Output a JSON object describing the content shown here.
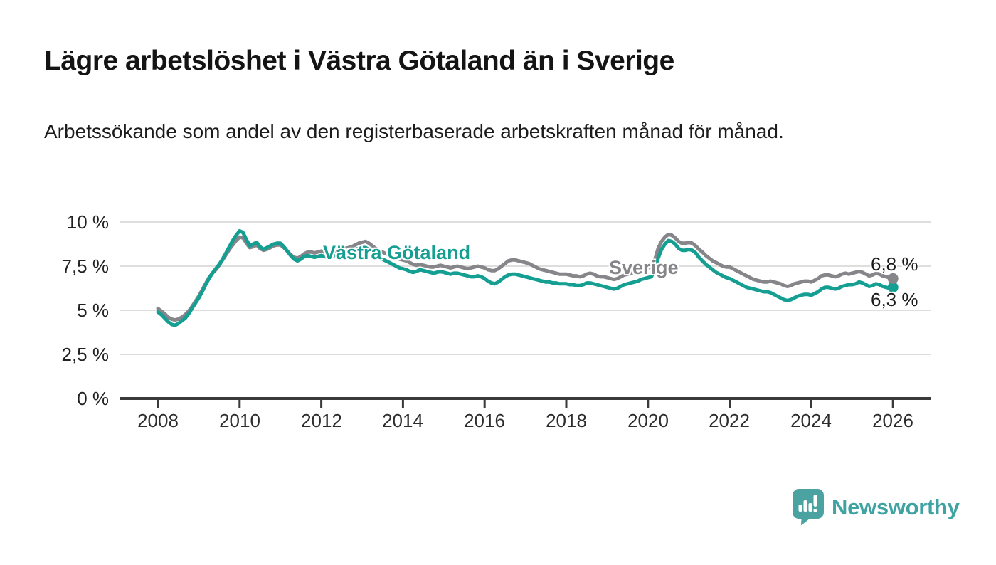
{
  "header": {
    "title": "Lägre arbetslöshet i Västra Götaland än i Sverige",
    "subtitle": "Arbetssökande som andel av den registerbaserade arbetskraften månad för månad."
  },
  "branding": {
    "logo_text": "Newsworthy",
    "logo_icon": "newsworthy-speech-bubble-bar-chart-icon",
    "logo_color": "#4AA3A1"
  },
  "chart_data": {
    "type": "line",
    "title": "Lägre arbetslöshet i Västra Götaland än i Sverige",
    "xlabel": "",
    "ylabel": "",
    "x_unit": "month",
    "x_start_year": 2008,
    "x_end_year": 2026,
    "ylim": [
      0,
      10.8
    ],
    "xlim": [
      2007.05,
      2027.05
    ],
    "grid": "horizontal",
    "legend_position": "inline-labels",
    "y_ticks": [
      {
        "value": 10,
        "label": "10 %"
      },
      {
        "value": 7.5,
        "label": "7,5 %"
      },
      {
        "value": 5,
        "label": "5 %"
      },
      {
        "value": 2.5,
        "label": "2,5 %"
      },
      {
        "value": 0,
        "label": "0 %"
      }
    ],
    "x_ticks": [
      {
        "value": 2008,
        "label": "2008"
      },
      {
        "value": 2010,
        "label": "2010"
      },
      {
        "value": 2012,
        "label": "2012"
      },
      {
        "value": 2014,
        "label": "2014"
      },
      {
        "value": 2016,
        "label": "2016"
      },
      {
        "value": 2018,
        "label": "2018"
      },
      {
        "value": 2020,
        "label": "2020"
      },
      {
        "value": 2022,
        "label": "2022"
      },
      {
        "value": 2024,
        "label": "2024"
      },
      {
        "value": 2026,
        "label": "2026"
      }
    ],
    "series": [
      {
        "name": "Sverige",
        "color": "#85858A",
        "end_label": "6,8 %",
        "end_value": 6.8,
        "values": [
          5.1,
          4.95,
          4.8,
          4.6,
          4.5,
          4.45,
          4.5,
          4.6,
          4.75,
          4.95,
          5.2,
          5.5,
          5.8,
          6.15,
          6.5,
          6.85,
          7.1,
          7.3,
          7.55,
          7.85,
          8.15,
          8.45,
          8.7,
          8.95,
          9.15,
          9.1,
          8.8,
          8.55,
          8.6,
          8.7,
          8.5,
          8.4,
          8.45,
          8.55,
          8.65,
          8.7,
          8.7,
          8.55,
          8.35,
          8.15,
          8.0,
          7.95,
          8.05,
          8.2,
          8.3,
          8.3,
          8.25,
          8.3,
          8.35,
          8.3,
          8.25,
          8.3,
          8.35,
          8.4,
          8.45,
          8.5,
          8.55,
          8.6,
          8.7,
          8.8,
          8.85,
          8.9,
          8.8,
          8.65,
          8.5,
          8.4,
          8.3,
          8.2,
          8.1,
          8.0,
          7.95,
          7.9,
          7.85,
          7.8,
          7.7,
          7.6,
          7.55,
          7.6,
          7.55,
          7.5,
          7.45,
          7.45,
          7.5,
          7.55,
          7.5,
          7.45,
          7.4,
          7.45,
          7.5,
          7.45,
          7.4,
          7.35,
          7.4,
          7.45,
          7.5,
          7.45,
          7.4,
          7.3,
          7.25,
          7.25,
          7.35,
          7.5,
          7.65,
          7.8,
          7.85,
          7.85,
          7.8,
          7.75,
          7.7,
          7.65,
          7.55,
          7.45,
          7.35,
          7.3,
          7.25,
          7.2,
          7.15,
          7.1,
          7.05,
          7.05,
          7.05,
          7.0,
          6.95,
          6.95,
          6.9,
          6.95,
          7.05,
          7.1,
          7.05,
          6.95,
          6.9,
          6.9,
          6.85,
          6.8,
          6.75,
          6.8,
          6.9,
          7.0,
          7.05,
          7.1,
          7.15,
          7.2,
          7.3,
          7.35,
          7.4,
          7.45,
          7.85,
          8.5,
          8.9,
          9.15,
          9.3,
          9.25,
          9.1,
          8.9,
          8.8,
          8.8,
          8.85,
          8.8,
          8.65,
          8.45,
          8.3,
          8.1,
          7.95,
          7.8,
          7.7,
          7.6,
          7.5,
          7.45,
          7.45,
          7.35,
          7.25,
          7.15,
          7.05,
          6.95,
          6.85,
          6.75,
          6.7,
          6.65,
          6.6,
          6.6,
          6.65,
          6.6,
          6.55,
          6.5,
          6.4,
          6.35,
          6.4,
          6.5,
          6.55,
          6.6,
          6.65,
          6.65,
          6.6,
          6.7,
          6.8,
          6.95,
          7.0,
          7.0,
          6.95,
          6.9,
          6.95,
          7.05,
          7.1,
          7.05,
          7.1,
          7.15,
          7.2,
          7.15,
          7.05,
          6.95,
          7.0,
          7.1,
          7.05,
          6.95,
          6.9,
          6.85,
          6.8
        ]
      },
      {
        "name": "Västra Götaland",
        "color": "#149F92",
        "end_label": "6,3 %",
        "end_value": 6.3,
        "values": [
          4.9,
          4.75,
          4.55,
          4.35,
          4.2,
          4.15,
          4.25,
          4.4,
          4.55,
          4.8,
          5.1,
          5.4,
          5.7,
          6.05,
          6.45,
          6.8,
          7.1,
          7.35,
          7.6,
          7.9,
          8.25,
          8.6,
          8.95,
          9.25,
          9.5,
          9.4,
          9.0,
          8.65,
          8.75,
          8.85,
          8.6,
          8.45,
          8.55,
          8.65,
          8.75,
          8.8,
          8.8,
          8.6,
          8.35,
          8.1,
          7.9,
          7.8,
          7.9,
          8.05,
          8.1,
          8.05,
          8.0,
          8.05,
          8.1,
          8.05,
          8.0,
          8.05,
          8.1,
          8.15,
          8.2,
          8.3,
          8.35,
          8.4,
          8.45,
          8.5,
          8.55,
          8.55,
          8.45,
          8.3,
          8.15,
          8.0,
          7.9,
          7.8,
          7.7,
          7.6,
          7.5,
          7.4,
          7.35,
          7.3,
          7.2,
          7.15,
          7.2,
          7.3,
          7.25,
          7.2,
          7.15,
          7.1,
          7.15,
          7.2,
          7.15,
          7.1,
          7.05,
          7.1,
          7.1,
          7.05,
          7.0,
          6.95,
          6.9,
          6.9,
          6.95,
          6.9,
          6.8,
          6.65,
          6.55,
          6.5,
          6.6,
          6.75,
          6.9,
          7.0,
          7.05,
          7.05,
          7.0,
          6.95,
          6.9,
          6.85,
          6.8,
          6.75,
          6.7,
          6.65,
          6.6,
          6.6,
          6.55,
          6.55,
          6.5,
          6.5,
          6.5,
          6.45,
          6.45,
          6.4,
          6.4,
          6.45,
          6.55,
          6.55,
          6.5,
          6.45,
          6.4,
          6.35,
          6.3,
          6.25,
          6.2,
          6.25,
          6.35,
          6.45,
          6.5,
          6.55,
          6.6,
          6.65,
          6.75,
          6.8,
          6.85,
          6.9,
          7.3,
          7.95,
          8.45,
          8.75,
          8.95,
          8.9,
          8.75,
          8.5,
          8.4,
          8.4,
          8.45,
          8.4,
          8.25,
          8.0,
          7.8,
          7.6,
          7.45,
          7.3,
          7.15,
          7.05,
          6.95,
          6.85,
          6.8,
          6.7,
          6.6,
          6.5,
          6.4,
          6.3,
          6.25,
          6.2,
          6.15,
          6.1,
          6.05,
          6.05,
          6.0,
          5.9,
          5.8,
          5.7,
          5.6,
          5.55,
          5.6,
          5.7,
          5.8,
          5.85,
          5.9,
          5.9,
          5.85,
          5.95,
          6.05,
          6.2,
          6.3,
          6.3,
          6.25,
          6.2,
          6.25,
          6.35,
          6.4,
          6.45,
          6.45,
          6.5,
          6.6,
          6.55,
          6.45,
          6.35,
          6.4,
          6.5,
          6.45,
          6.35,
          6.3,
          6.25,
          6.3
        ]
      }
    ]
  }
}
